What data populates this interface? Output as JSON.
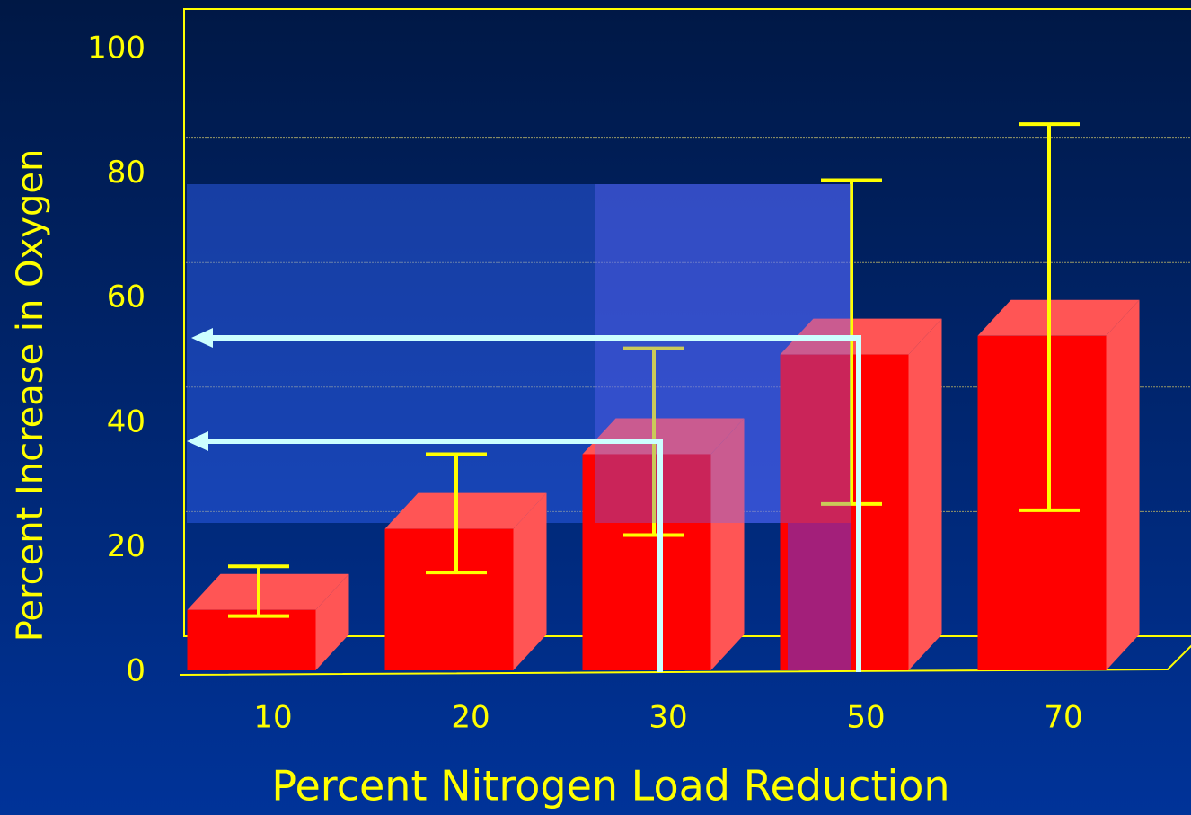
{
  "chart_data": {
    "type": "bar3d",
    "x_label": "Percent Nitrogen Load Reduction",
    "y_label": "Percent Increase in Oxygen",
    "categories": [
      "10",
      "20",
      "30",
      "50",
      "70"
    ],
    "values": [
      10,
      23,
      35,
      51,
      54
    ],
    "error_low": [
      9,
      16,
      22,
      27,
      26
    ],
    "error_high": [
      17,
      35,
      52,
      79,
      88
    ],
    "color": "#ff0000",
    "error_color": "#ffff00",
    "ylim": [
      0,
      100
    ],
    "yticks": [
      0,
      20,
      40,
      60,
      80,
      100
    ],
    "grid": true
  }
}
